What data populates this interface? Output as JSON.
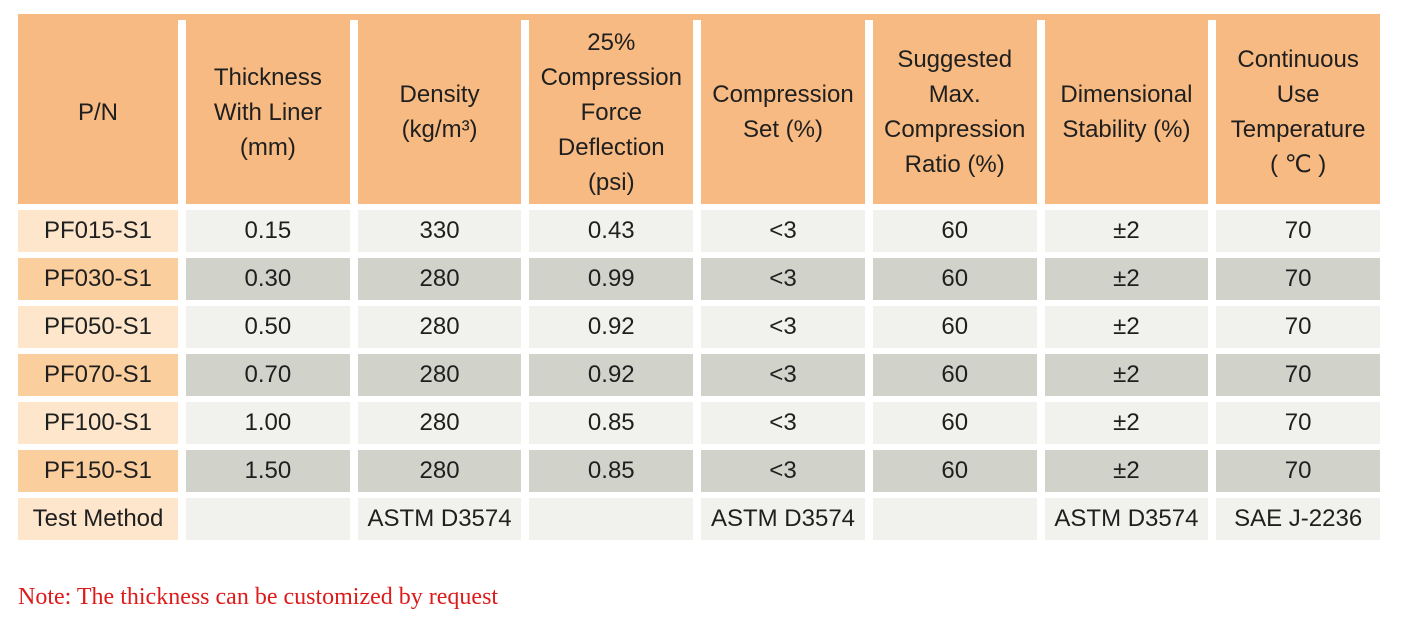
{
  "table": {
    "columns": [
      "P/N",
      "Thickness\nWith Liner\n(mm)",
      "Density\n(kg/m³)",
      "25%\nCompression\nForce\nDeflection\n(psi)",
      "Compression\nSet (%)",
      "Suggested\nMax.\nCompression\nRatio (%)",
      "Dimensional\nStability (%)",
      "Continuous\nUse\nTemperature\n( ℃ )"
    ],
    "rows": [
      {
        "pn": "PF015-S1",
        "values": [
          "0.15",
          "330",
          "0.43",
          "<3",
          "60",
          "±2",
          "70"
        ]
      },
      {
        "pn": "PF030-S1",
        "values": [
          "0.30",
          "280",
          "0.99",
          "<3",
          "60",
          "±2",
          "70"
        ]
      },
      {
        "pn": "PF050-S1",
        "values": [
          "0.50",
          "280",
          "0.92",
          "<3",
          "60",
          "±2",
          "70"
        ]
      },
      {
        "pn": "PF070-S1",
        "values": [
          "0.70",
          "280",
          "0.92",
          "<3",
          "60",
          "±2",
          "70"
        ]
      },
      {
        "pn": "PF100-S1",
        "values": [
          "1.00",
          "280",
          "0.85",
          "<3",
          "60",
          "±2",
          "70"
        ]
      },
      {
        "pn": "PF150-S1",
        "values": [
          "1.50",
          "280",
          "0.85",
          "<3",
          "60",
          "±2",
          "70"
        ]
      },
      {
        "pn": "Test Method",
        "values": [
          "",
          "ASTM D3574",
          "",
          "ASTM D3574",
          "",
          "ASTM D3574",
          "SAE J-2236"
        ]
      }
    ]
  },
  "note": "Note: The thickness can be customized by request",
  "colors": {
    "header_orange": "#f6ba82",
    "pn_light": "#fde6cb",
    "pn_medium": "#fbce9e",
    "cell_light": "#f1f2ed",
    "cell_dark": "#d1d3ca",
    "note_red": "#dd1b1b",
    "text": "#1f1f1f"
  }
}
